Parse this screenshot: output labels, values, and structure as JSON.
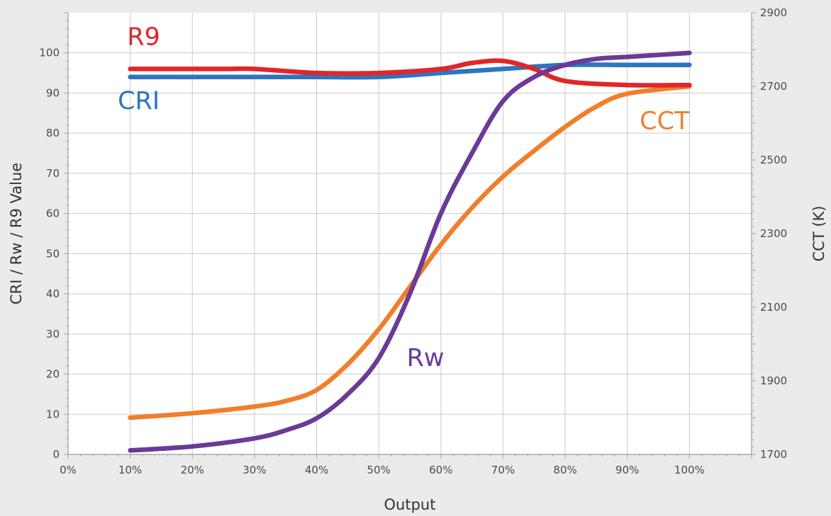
{
  "chart_data": {
    "type": "line",
    "title": "",
    "xlabel": "Output",
    "ylabel": "CRI / Rw / R9 Value",
    "y2label": "CCT (K)",
    "x": [
      0.1,
      0.2,
      0.3,
      0.4,
      0.5,
      0.6,
      0.7,
      0.8,
      0.9,
      1.0
    ],
    "xlim": [
      0,
      1.1
    ],
    "xticks": [
      0,
      0.1,
      0.2,
      0.3,
      0.4,
      0.5,
      0.6,
      0.7,
      0.8,
      0.9,
      1.0
    ],
    "xtick_labels": [
      "0%",
      "10%",
      "20%",
      "30%",
      "40%",
      "50%",
      "60%",
      "70%",
      "80%",
      "90%",
      "100%"
    ],
    "ylim": [
      0,
      110
    ],
    "yticks": [
      0,
      10,
      20,
      30,
      40,
      50,
      60,
      70,
      80,
      90,
      100
    ],
    "ytick_labels": [
      "0",
      "10",
      "20",
      "30",
      "40",
      "50",
      "60",
      "70",
      "80",
      "90",
      "100"
    ],
    "y2lim": [
      1700,
      2900
    ],
    "y2ticks": [
      1700,
      1900,
      2100,
      2300,
      2500,
      2700,
      2900
    ],
    "y2tick_labels": [
      "1700",
      "1900",
      "2100",
      "2300",
      "2500",
      "2700",
      "2900"
    ],
    "grid": true,
    "legend": "none",
    "series": [
      {
        "name": "CRI",
        "axis": "left",
        "color": "#2f74c0",
        "x": [
          0.1,
          0.2,
          0.3,
          0.4,
          0.5,
          0.6,
          0.7,
          0.8,
          0.9,
          1.0
        ],
        "values": [
          94,
          94,
          94,
          94,
          94,
          95,
          96,
          97,
          97,
          97
        ]
      },
      {
        "name": "R9",
        "axis": "left",
        "color": "#e1262a",
        "x": [
          0.1,
          0.2,
          0.25,
          0.3,
          0.4,
          0.5,
          0.6,
          0.65,
          0.7,
          0.75,
          0.8,
          0.9,
          1.0
        ],
        "values": [
          96,
          96,
          96,
          96,
          95,
          95,
          96,
          97.5,
          98,
          96,
          93,
          92,
          92
        ]
      },
      {
        "name": "Rw",
        "axis": "left",
        "color": "#6b3a97",
        "x": [
          0.1,
          0.2,
          0.3,
          0.35,
          0.4,
          0.45,
          0.5,
          0.55,
          0.6,
          0.65,
          0.7,
          0.75,
          0.8,
          0.85,
          0.9,
          1.0
        ],
        "values": [
          1,
          2,
          4,
          6,
          9,
          15,
          24,
          40,
          60,
          75,
          88,
          94,
          97,
          98.5,
          99,
          100
        ],
        "curve": "smooth"
      },
      {
        "name": "CCT",
        "axis": "right",
        "color": "#f07f2c",
        "x": [
          0.1,
          0.2,
          0.3,
          0.35,
          0.4,
          0.45,
          0.5,
          0.55,
          0.6,
          0.65,
          0.7,
          0.75,
          0.8,
          0.85,
          0.9,
          1.0
        ],
        "values": [
          1800,
          1812,
          1830,
          1845,
          1875,
          1945,
          2040,
          2155,
          2270,
          2370,
          2455,
          2525,
          2590,
          2645,
          2680,
          2700
        ],
        "curve": "smooth"
      }
    ],
    "annotations": [
      {
        "text": "R9",
        "color": "#e1262a",
        "x": 0.095,
        "y": 102
      },
      {
        "text": "CRI",
        "color": "#2f74c0",
        "x": 0.08,
        "y": 86
      },
      {
        "text": "Rw",
        "color": "#6b3a97",
        "x": 0.545,
        "y": 22
      },
      {
        "text": "CCT",
        "color": "#f07f2c",
        "x": 0.96,
        "y": 81
      }
    ]
  }
}
